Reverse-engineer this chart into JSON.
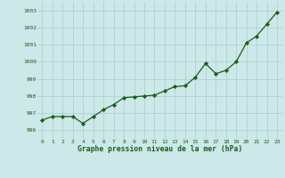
{
  "x": [
    0,
    1,
    2,
    3,
    4,
    5,
    6,
    7,
    8,
    9,
    10,
    11,
    12,
    13,
    14,
    15,
    16,
    17,
    18,
    19,
    20,
    21,
    22,
    23
  ],
  "y": [
    996.6,
    996.8,
    996.8,
    996.8,
    996.4,
    996.8,
    997.2,
    997.5,
    997.9,
    997.95,
    998.0,
    998.05,
    998.3,
    998.55,
    998.6,
    999.1,
    999.9,
    999.3,
    999.5,
    1000.0,
    1001.1,
    1001.5,
    1002.2,
    1002.9
  ],
  "line_color": "#1a5c1a",
  "marker_color": "#1a5c1a",
  "bg_color": "#cce8e8",
  "grid_color": "#aacece",
  "xlabel": "Graphe pression niveau de la mer (hPa)",
  "xlabel_color": "#1a5c1a",
  "tick_color": "#1a5c1a",
  "ylim": [
    995.5,
    1003.5
  ],
  "yticks": [
    996,
    997,
    998,
    999,
    1000,
    1001,
    1002,
    1003
  ],
  "xticks": [
    0,
    1,
    2,
    3,
    4,
    5,
    6,
    7,
    8,
    9,
    10,
    11,
    12,
    13,
    14,
    15,
    16,
    17,
    18,
    19,
    20,
    21,
    22,
    23
  ]
}
